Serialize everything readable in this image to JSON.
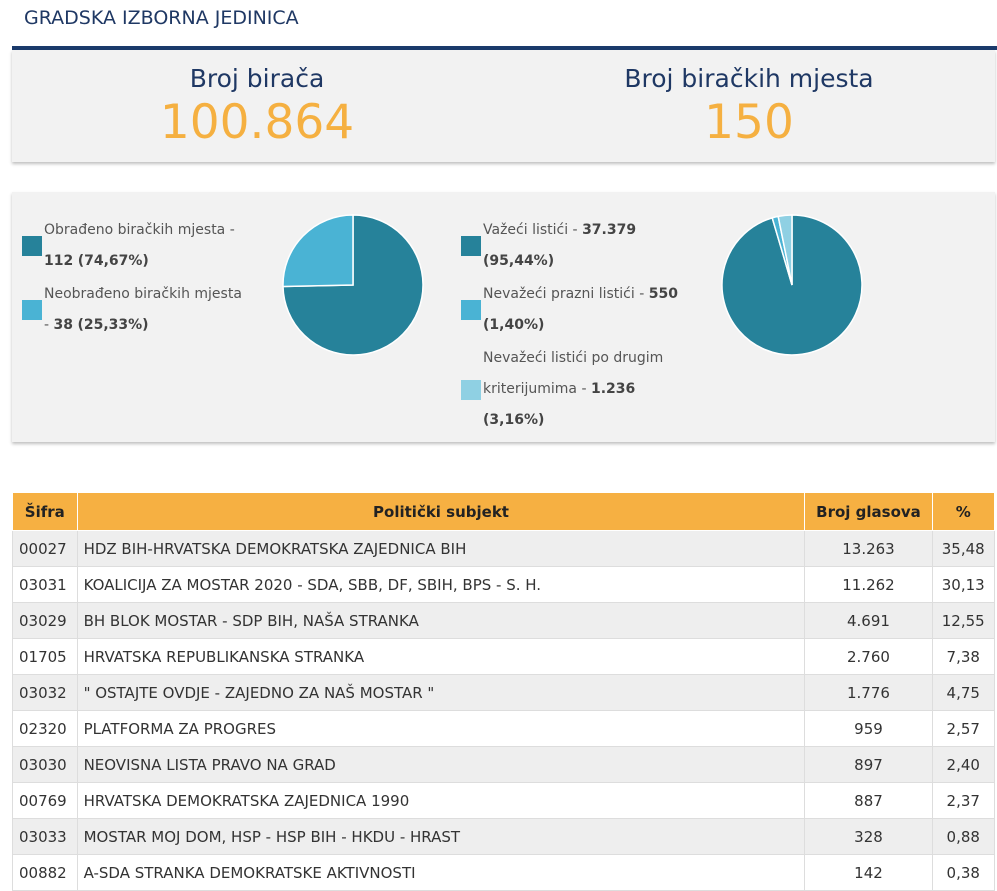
{
  "header": {
    "title": "GRADSKA IZBORNA JEDINICA"
  },
  "stats": [
    {
      "label": "Broj birača",
      "value": "100.864"
    },
    {
      "label": "Broj biračkih mjesta",
      "value": "150"
    }
  ],
  "charts": [
    {
      "type": "pie",
      "items": [
        {
          "label": "Obrađeno biračkih mjesta -",
          "count": "112",
          "share": "(74,67%)",
          "percent": 74.67,
          "color": "#26829a"
        },
        {
          "label": "Neobrađeno biračkih mjesta -",
          "count": "38",
          "share": "(25,33%)",
          "percent": 25.33,
          "color": "#4ab3d4"
        }
      ]
    },
    {
      "type": "pie",
      "items": [
        {
          "label": "Važeći listići -",
          "count": "37.379",
          "share": "(95,44%)",
          "percent": 95.44,
          "color": "#26829a"
        },
        {
          "label": "Nevažeći prazni listići -",
          "count": "550",
          "share": "(1,40%)",
          "percent": 1.4,
          "color": "#4ab3d4"
        },
        {
          "label": "Nevažeći listići po drugim kriterijumima -",
          "count": "1.236",
          "share": "(3,16%)",
          "percent": 3.16,
          "color": "#8fd0e3"
        }
      ]
    }
  ],
  "table": {
    "columns": [
      "Šifra",
      "Politički subjekt",
      "Broj glasova",
      "%"
    ],
    "rows": [
      [
        "00027",
        "HDZ BIH-HRVATSKA DEMOKRATSKA ZAJEDNICA BIH",
        "13.263",
        "35,48"
      ],
      [
        "03031",
        "KOALICIJA ZA MOSTAR 2020 - SDA, SBB, DF, SBIH, BPS - S. H.",
        "11.262",
        "30,13"
      ],
      [
        "03029",
        "BH BLOK MOSTAR - SDP BIH, NAŠA STRANKA",
        "4.691",
        "12,55"
      ],
      [
        "01705",
        "HRVATSKA REPUBLIKANSKA STRANKA",
        "2.760",
        "7,38"
      ],
      [
        "03032",
        "\" OSTAJTE OVDJE - ZAJEDNO ZA NAŠ MOSTAR \"",
        "1.776",
        "4,75"
      ],
      [
        "02320",
        "PLATFORMA ZA PROGRES",
        "959",
        "2,57"
      ],
      [
        "03030",
        "NEOVISNA LISTA PRAVO NA GRAD",
        "897",
        "2,40"
      ],
      [
        "00769",
        "HRVATSKA DEMOKRATSKA ZAJEDNICA 1990",
        "887",
        "2,37"
      ],
      [
        "03033",
        "MOSTAR MOJ DOM, HSP - HSP BIH - HKDU - HRAST",
        "328",
        "0,88"
      ],
      [
        "00882",
        "A-SDA STRANKA DEMOKRATSKE AKTIVNOSTI",
        "142",
        "0,38"
      ]
    ]
  }
}
